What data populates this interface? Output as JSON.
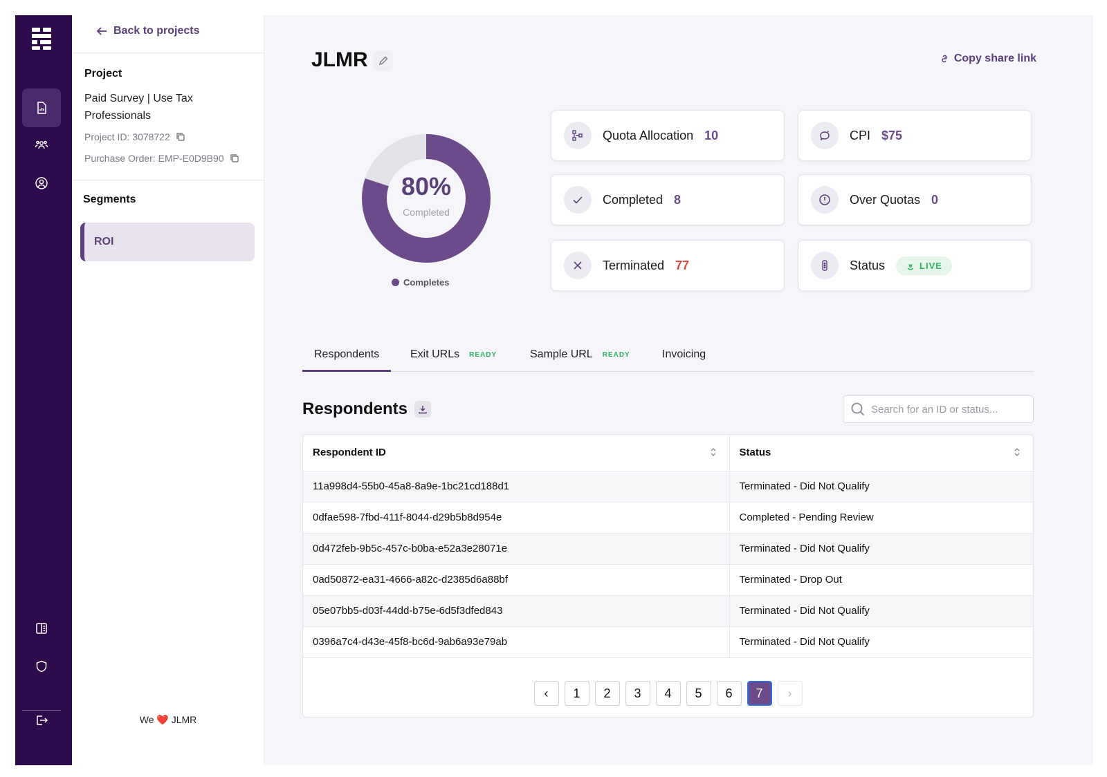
{
  "side": {
    "back_label": "Back to projects",
    "project_heading": "Project",
    "project_name": "Paid Survey | Use Tax Professionals",
    "project_id": "Project ID: 3078722",
    "purchase_order": "Purchase Order: EMP-E0D9B90",
    "segments_heading": "Segments",
    "segments": [
      {
        "label": "ROI"
      }
    ],
    "footer_we": "We",
    "footer_heart": "❤️",
    "footer_brand": "JLMR"
  },
  "header": {
    "title": "JLMR",
    "share_label": "Copy share link"
  },
  "donut": {
    "percent": 80,
    "percent_label": "80%",
    "sub_label": "Completed",
    "legend": "Completes",
    "colors": {
      "fill": "#6b4b8a",
      "track": "#e2e2e8"
    }
  },
  "stats": {
    "quota_label": "Quota Allocation",
    "quota_value": "10",
    "cpi_label": "CPI",
    "cpi_value": "$75",
    "completed_label": "Completed",
    "completed_value": "8",
    "over_label": "Over Quotas",
    "over_value": "0",
    "terminated_label": "Terminated",
    "terminated_value": "77",
    "status_label": "Status",
    "status_value": "LIVE"
  },
  "tabs": [
    {
      "label": "Respondents",
      "badge": ""
    },
    {
      "label": "Exit URLs",
      "badge": "READY"
    },
    {
      "label": "Sample URL",
      "badge": "READY"
    },
    {
      "label": "Invoicing",
      "badge": ""
    }
  ],
  "respondents": {
    "heading": "Respondents",
    "search_placeholder": "Search for an ID or status...",
    "columns": [
      "Respondent ID",
      "Status"
    ],
    "rows": [
      {
        "id": "11a998d4-55b0-45a8-8a9e-1bc21cd188d1",
        "status": "Terminated - Did Not Qualify"
      },
      {
        "id": "0dfae598-7fbd-411f-8044-d29b5b8d954e",
        "status": "Completed - Pending Review"
      },
      {
        "id": "0d472feb-9b5c-457c-b0ba-e52a3e28071e",
        "status": "Terminated - Did Not Qualify"
      },
      {
        "id": "0ad50872-ea31-4666-a82c-d2385d6a88bf",
        "status": "Terminated - Drop Out"
      },
      {
        "id": "05e07bb5-d03f-44dd-b75e-6d5f3dfed843",
        "status": "Terminated - Did Not Qualify"
      },
      {
        "id": "0396a7c4-d43e-45f8-bc6d-9ab6a93e79ab",
        "status": "Terminated - Did Not Qualify"
      }
    ]
  },
  "pagination": {
    "prev": "‹",
    "next": "›",
    "pages": [
      "1",
      "2",
      "3",
      "4",
      "5",
      "6",
      "7"
    ],
    "current": "7"
  }
}
